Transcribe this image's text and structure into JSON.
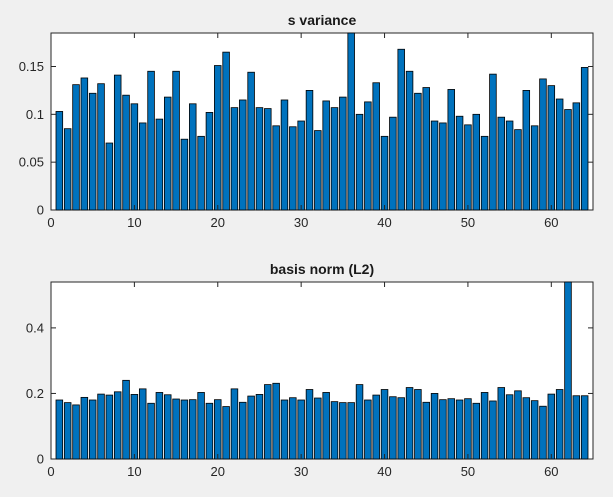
{
  "chart_data": [
    {
      "type": "bar",
      "title": "s variance",
      "xlabel": "",
      "ylabel": "",
      "xlim": [
        0,
        65
      ],
      "ylim": [
        0,
        0.185
      ],
      "xticks": [
        0,
        10,
        20,
        30,
        40,
        50,
        60
      ],
      "xtick_labels": [
        "0",
        "10",
        "20",
        "30",
        "40",
        "50",
        "60"
      ],
      "yticks": [
        0,
        0.05,
        0.1,
        0.15
      ],
      "ytick_labels": [
        "0",
        "0.05",
        "0.1",
        "0.15"
      ],
      "grid": false,
      "color": "#0072bd",
      "x": [
        1,
        2,
        3,
        4,
        5,
        6,
        7,
        8,
        9,
        10,
        11,
        12,
        13,
        14,
        15,
        16,
        17,
        18,
        19,
        20,
        21,
        22,
        23,
        24,
        25,
        26,
        27,
        28,
        29,
        30,
        31,
        32,
        33,
        34,
        35,
        36,
        37,
        38,
        39,
        40,
        41,
        42,
        43,
        44,
        45,
        46,
        47,
        48,
        49,
        50,
        51,
        52,
        53,
        54,
        55,
        56,
        57,
        58,
        59,
        60,
        61,
        62,
        63,
        64
      ],
      "values": [
        0.103,
        0.085,
        0.131,
        0.138,
        0.122,
        0.132,
        0.07,
        0.141,
        0.12,
        0.111,
        0.091,
        0.145,
        0.095,
        0.118,
        0.145,
        0.074,
        0.111,
        0.077,
        0.102,
        0.151,
        0.165,
        0.107,
        0.115,
        0.144,
        0.107,
        0.106,
        0.088,
        0.115,
        0.087,
        0.093,
        0.125,
        0.083,
        0.114,
        0.107,
        0.118,
        0.185,
        0.1,
        0.113,
        0.133,
        0.077,
        0.097,
        0.168,
        0.145,
        0.122,
        0.128,
        0.093,
        0.091,
        0.126,
        0.098,
        0.089,
        0.1,
        0.077,
        0.142,
        0.097,
        0.093,
        0.084,
        0.125,
        0.088,
        0.137,
        0.13,
        0.116,
        0.105,
        0.112,
        0.149
      ]
    },
    {
      "type": "bar",
      "title": "basis norm (L2)",
      "xlabel": "",
      "ylabel": "",
      "xlim": [
        0,
        65
      ],
      "ylim": [
        0,
        0.54
      ],
      "xticks": [
        0,
        10,
        20,
        30,
        40,
        50,
        60
      ],
      "xtick_labels": [
        "0",
        "10",
        "20",
        "30",
        "40",
        "50",
        "60"
      ],
      "yticks": [
        0,
        0.2,
        0.4
      ],
      "ytick_labels": [
        "0",
        "0.2",
        "0.4"
      ],
      "grid": false,
      "color": "#0072bd",
      "x": [
        1,
        2,
        3,
        4,
        5,
        6,
        7,
        8,
        9,
        10,
        11,
        12,
        13,
        14,
        15,
        16,
        17,
        18,
        19,
        20,
        21,
        22,
        23,
        24,
        25,
        26,
        27,
        28,
        29,
        30,
        31,
        32,
        33,
        34,
        35,
        36,
        37,
        38,
        39,
        40,
        41,
        42,
        43,
        44,
        45,
        46,
        47,
        48,
        49,
        50,
        51,
        52,
        53,
        54,
        55,
        56,
        57,
        58,
        59,
        60,
        61,
        62,
        63,
        64
      ],
      "values": [
        0.18,
        0.172,
        0.165,
        0.188,
        0.18,
        0.198,
        0.195,
        0.205,
        0.24,
        0.197,
        0.214,
        0.17,
        0.203,
        0.196,
        0.183,
        0.18,
        0.181,
        0.203,
        0.17,
        0.181,
        0.16,
        0.214,
        0.173,
        0.192,
        0.197,
        0.227,
        0.231,
        0.18,
        0.187,
        0.18,
        0.212,
        0.186,
        0.203,
        0.175,
        0.172,
        0.172,
        0.227,
        0.18,
        0.195,
        0.212,
        0.19,
        0.187,
        0.218,
        0.212,
        0.173,
        0.2,
        0.181,
        0.184,
        0.18,
        0.184,
        0.17,
        0.203,
        0.177,
        0.218,
        0.196,
        0.208,
        0.187,
        0.178,
        0.161,
        0.198,
        0.212,
        0.54,
        0.193,
        0.193
      ]
    }
  ]
}
